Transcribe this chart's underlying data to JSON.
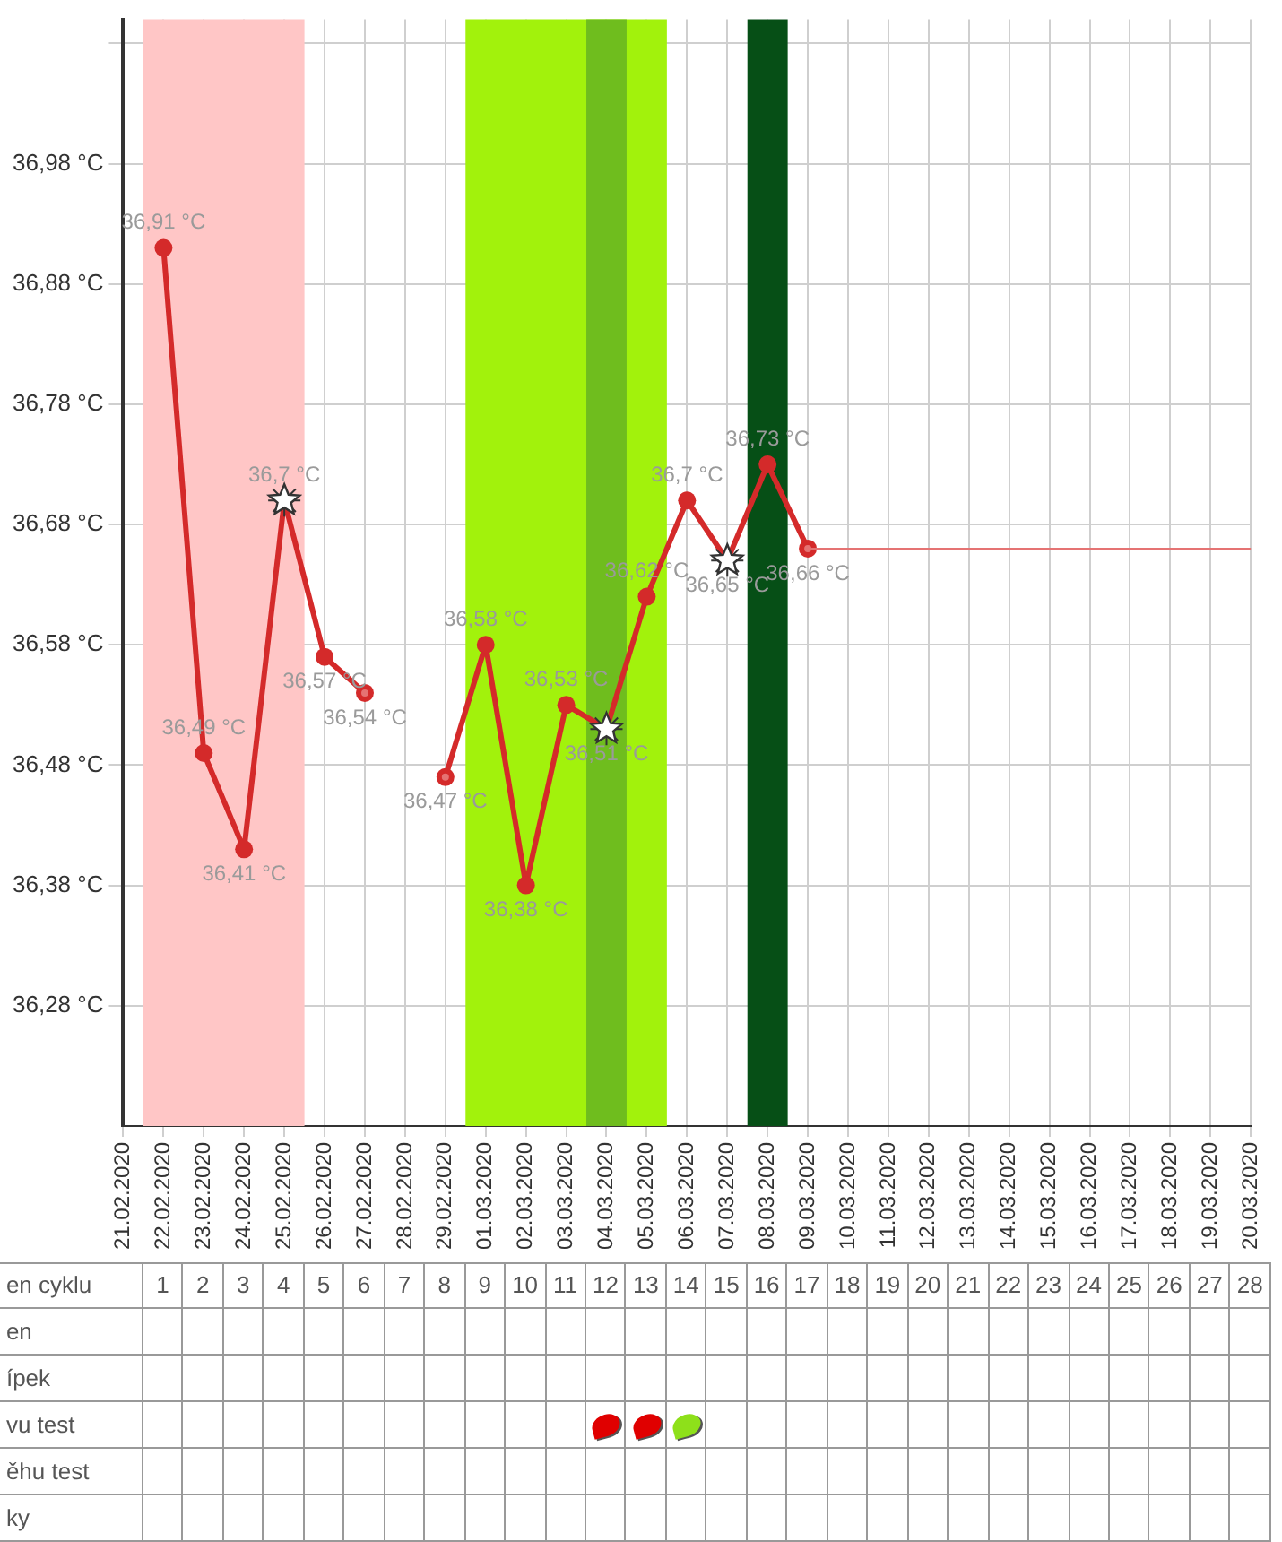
{
  "chart_data": {
    "type": "line",
    "categories": [
      "21.02.2020",
      "22.02.2020",
      "23.02.2020",
      "24.02.2020",
      "25.02.2020",
      "26.02.2020",
      "27.02.2020",
      "28.02.2020",
      "29.02.2020",
      "01.03.2020",
      "02.03.2020",
      "03.03.2020",
      "04.03.2020",
      "05.03.2020",
      "06.03.2020",
      "07.03.2020",
      "08.03.2020",
      "09.03.2020",
      "10.03.2020",
      "11.03.2020",
      "12.03.2020",
      "13.03.2020",
      "14.03.2020",
      "15.03.2020",
      "16.03.2020",
      "17.03.2020",
      "18.03.2020",
      "19.03.2020",
      "20.03.2020"
    ],
    "series": [
      {
        "type": "line",
        "color": "#d42a2a",
        "marker": "circle",
        "values": [
          null,
          36.91,
          36.49,
          36.41,
          36.7,
          36.57,
          36.54,
          null,
          36.47,
          36.58,
          36.38,
          36.53,
          36.51,
          36.62,
          36.7,
          36.65,
          36.73,
          36.66,
          null,
          null,
          null,
          null,
          null,
          null,
          null,
          null,
          null,
          null,
          null
        ],
        "value_labels": [
          null,
          "36,91 °C",
          "36,49 °C",
          "36,41 °C",
          "36,7 °C",
          "36,57 °C",
          "36,54 °C",
          null,
          "36,47 °C",
          "36,58 °C",
          "36,38 °C",
          "36,53 °C",
          "36,51 °C",
          "36,62 °C",
          "36,7 °C",
          "36,65 °C",
          "36,73 °C",
          "36,66 °C",
          null,
          null,
          null,
          null,
          null,
          null,
          null,
          null,
          null,
          null,
          null
        ]
      },
      {
        "type": "line",
        "color": "#e57373",
        "marker": "none",
        "values": [
          null,
          null,
          null,
          null,
          null,
          null,
          36.54,
          null,
          36.47,
          null,
          null,
          null,
          null,
          null,
          null,
          null,
          null,
          36.66,
          36.66,
          36.66,
          36.66,
          36.66,
          36.66,
          36.66,
          36.66,
          36.66,
          36.66,
          36.66,
          36.66
        ]
      },
      {
        "type": "scatter",
        "color": "#ffffff",
        "marker": "star",
        "x": [
          "25.02.2020",
          "04.03.2020",
          "07.03.2020"
        ],
        "values": [
          36.7,
          36.51,
          36.65
        ]
      }
    ],
    "ylim": [
      36.18,
      37.1
    ],
    "yticks": [
      {
        "value": 36.28,
        "label": "36,28 °C"
      },
      {
        "value": 36.38,
        "label": "36,38 °C"
      },
      {
        "value": 36.48,
        "label": "36,48 °C"
      },
      {
        "value": 36.58,
        "label": "36,58 °C"
      },
      {
        "value": 36.68,
        "label": "36,68 °C"
      },
      {
        "value": 36.78,
        "label": "36,78 °C"
      },
      {
        "value": 36.88,
        "label": "36,88 °C"
      },
      {
        "value": 36.98,
        "label": "36,98 °C"
      },
      {
        "value": 37.08,
        "label": null
      }
    ],
    "x2lim": [
      -3.04,
      28.5
    ],
    "x2ticks": [
      1,
      2,
      3,
      4,
      5,
      6,
      7,
      8,
      9,
      10,
      11,
      12,
      13,
      14,
      15,
      16,
      17,
      18,
      19,
      20,
      21,
      22,
      23,
      24,
      25,
      26,
      27,
      28
    ],
    "x2label": "en cyklu",
    "annotations": [
      "en",
      "ípek",
      "vu test",
      "ěhu test",
      "ky"
    ],
    "bands": [
      {
        "axis": "x",
        "from": "22.02.2020",
        "to": "25.02.2020",
        "color": "#ffc6c6"
      },
      {
        "axis": "x",
        "from": "01.03.2020",
        "to": "05.03.2020",
        "color": "#a2f20c"
      },
      {
        "axis": "x",
        "from": "04.03.2020",
        "to": "04.03.2020",
        "color": "#6fbd1e"
      },
      {
        "axis": "x",
        "from": "08.03.2020",
        "to": "08.03.2020",
        "color": "#064f16"
      }
    ],
    "grid": true,
    "legend": false
  }
}
